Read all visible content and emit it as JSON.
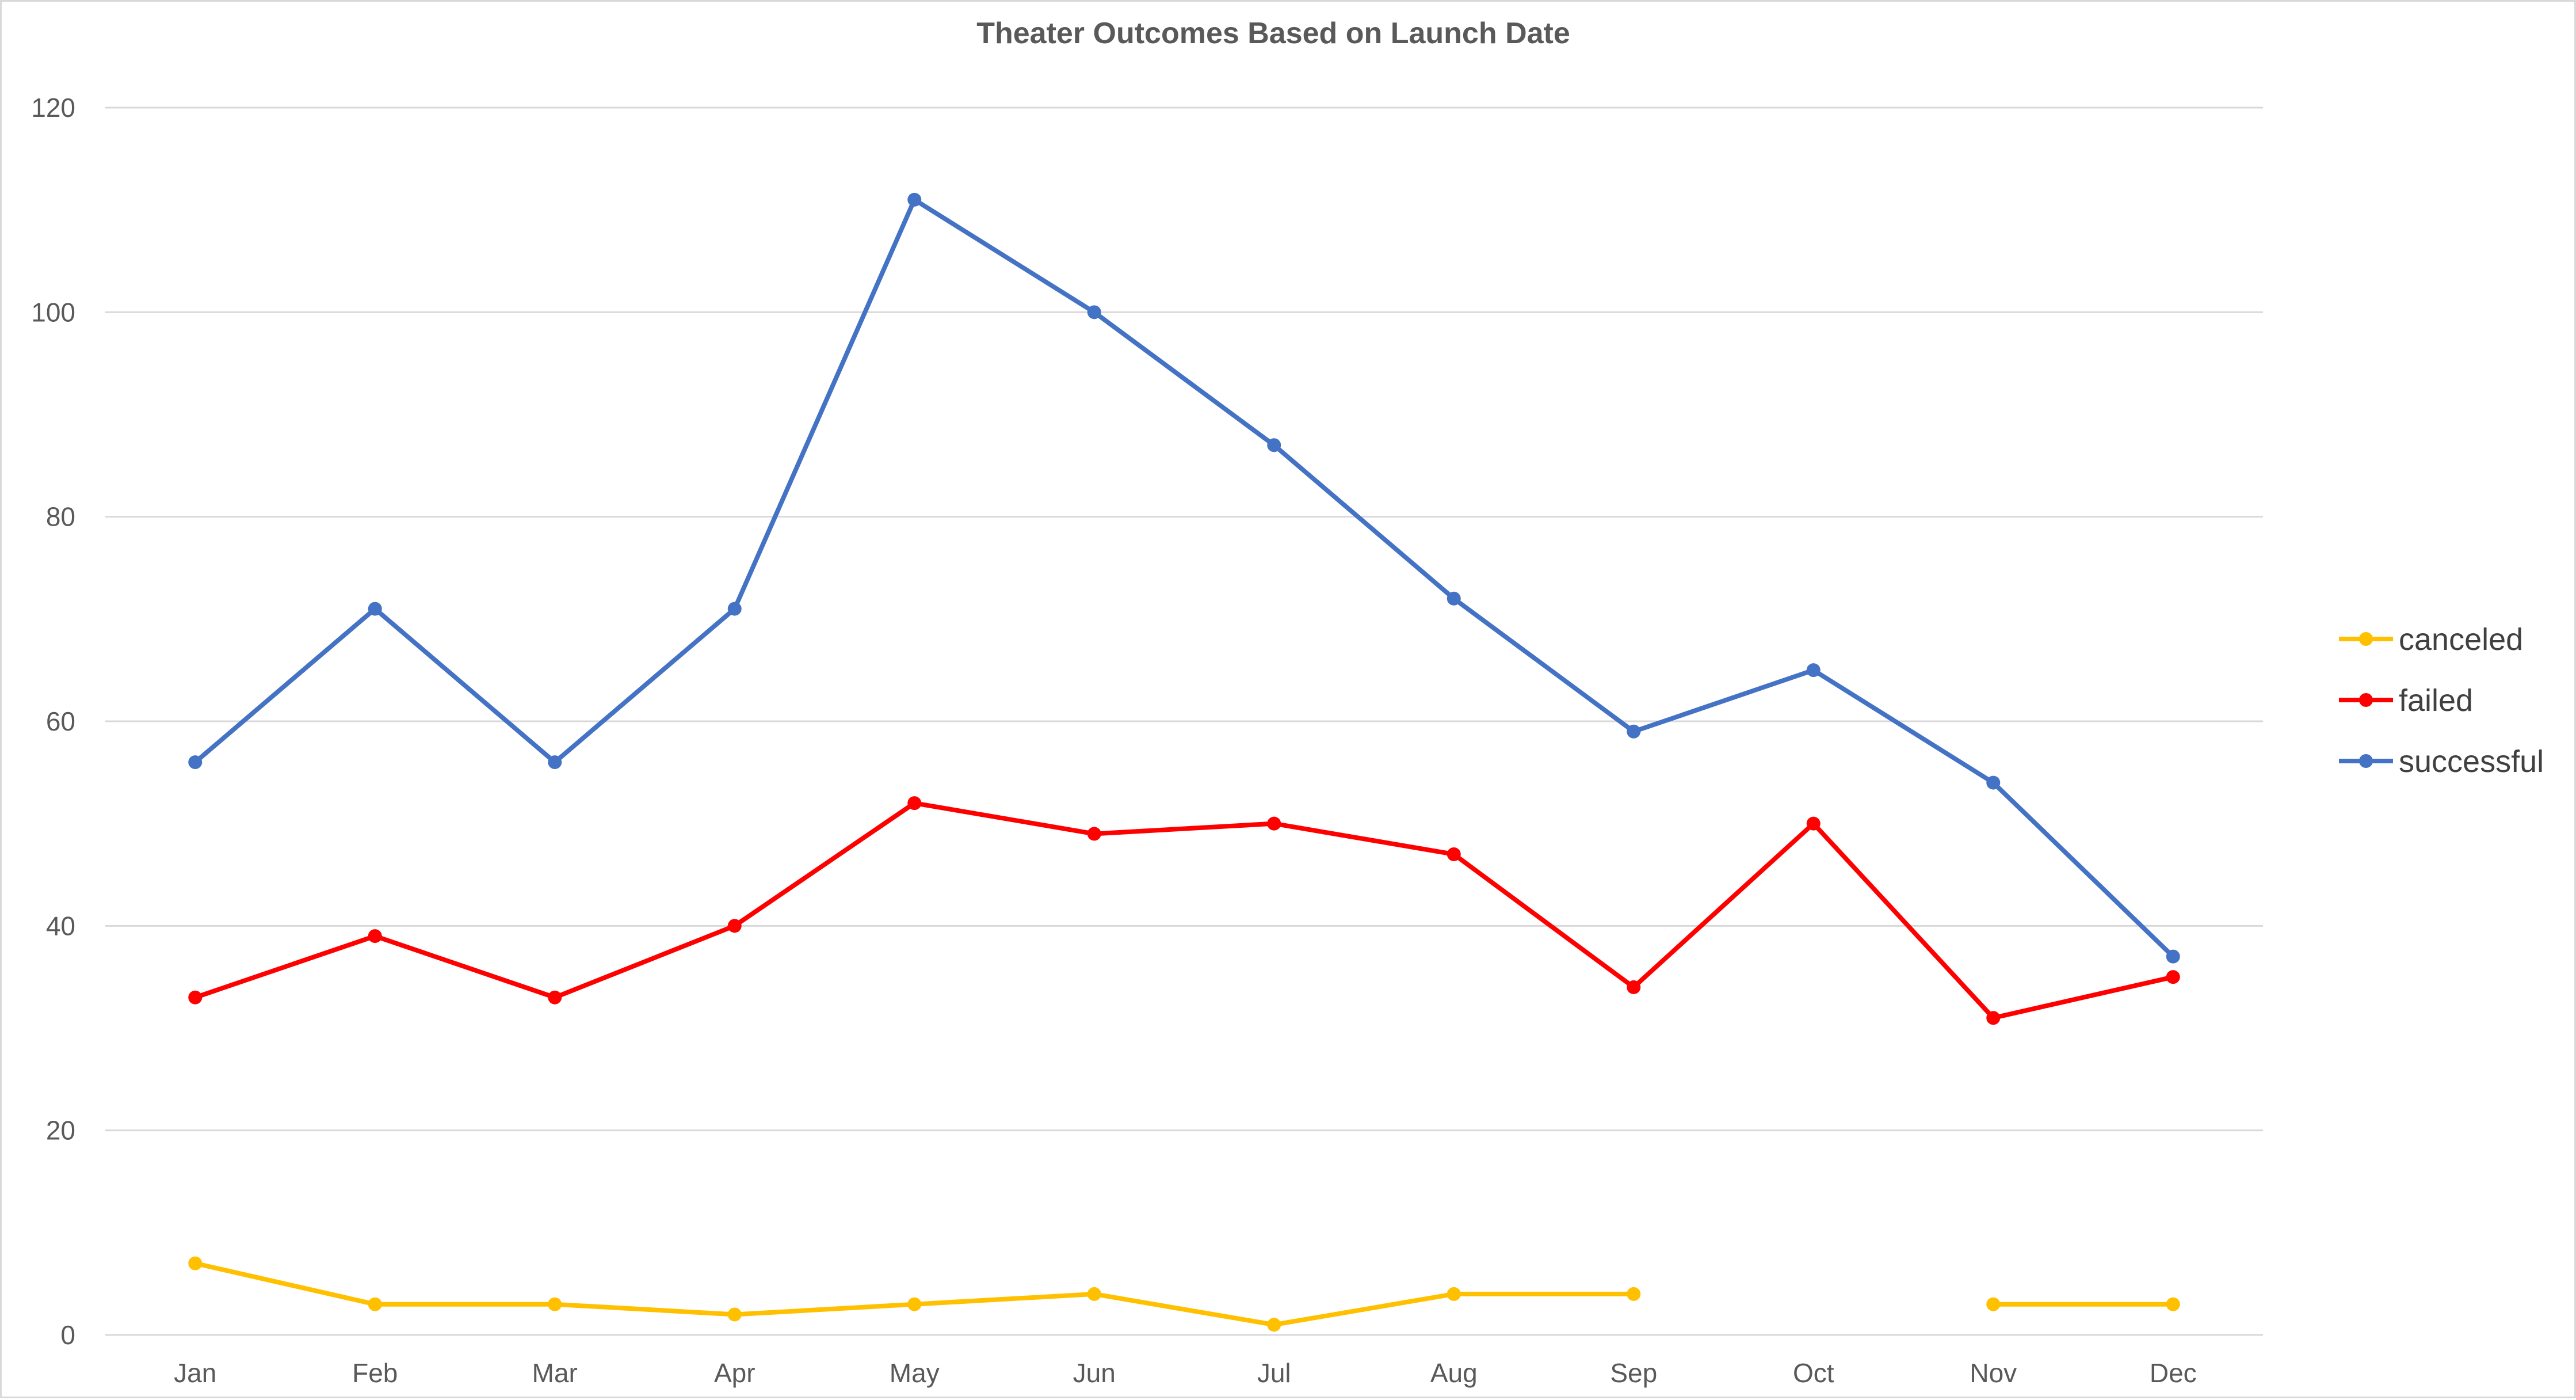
{
  "chart_data": {
    "type": "line",
    "title": "Theater Outcomes Based on Launch Date",
    "xlabel": "",
    "ylabel": "",
    "categories": [
      "Jan",
      "Feb",
      "Mar",
      "Apr",
      "May",
      "Jun",
      "Jul",
      "Aug",
      "Sep",
      "Oct",
      "Nov",
      "Dec"
    ],
    "ylim": [
      0,
      120
    ],
    "yticks": [
      0,
      20,
      40,
      60,
      80,
      100,
      120
    ],
    "grid": true,
    "legend_position": "right",
    "markers": true,
    "series": [
      {
        "name": "canceled",
        "color": "#FFC000",
        "values": [
          7,
          3,
          3,
          2,
          3,
          4,
          1,
          4,
          4,
          null,
          3,
          3
        ]
      },
      {
        "name": "failed",
        "color": "#FF0000",
        "values": [
          33,
          39,
          33,
          40,
          52,
          49,
          50,
          47,
          34,
          50,
          31,
          35
        ]
      },
      {
        "name": "successful",
        "color": "#4472C4",
        "values": [
          56,
          71,
          56,
          71,
          111,
          100,
          87,
          72,
          59,
          65,
          54,
          37
        ]
      }
    ]
  }
}
